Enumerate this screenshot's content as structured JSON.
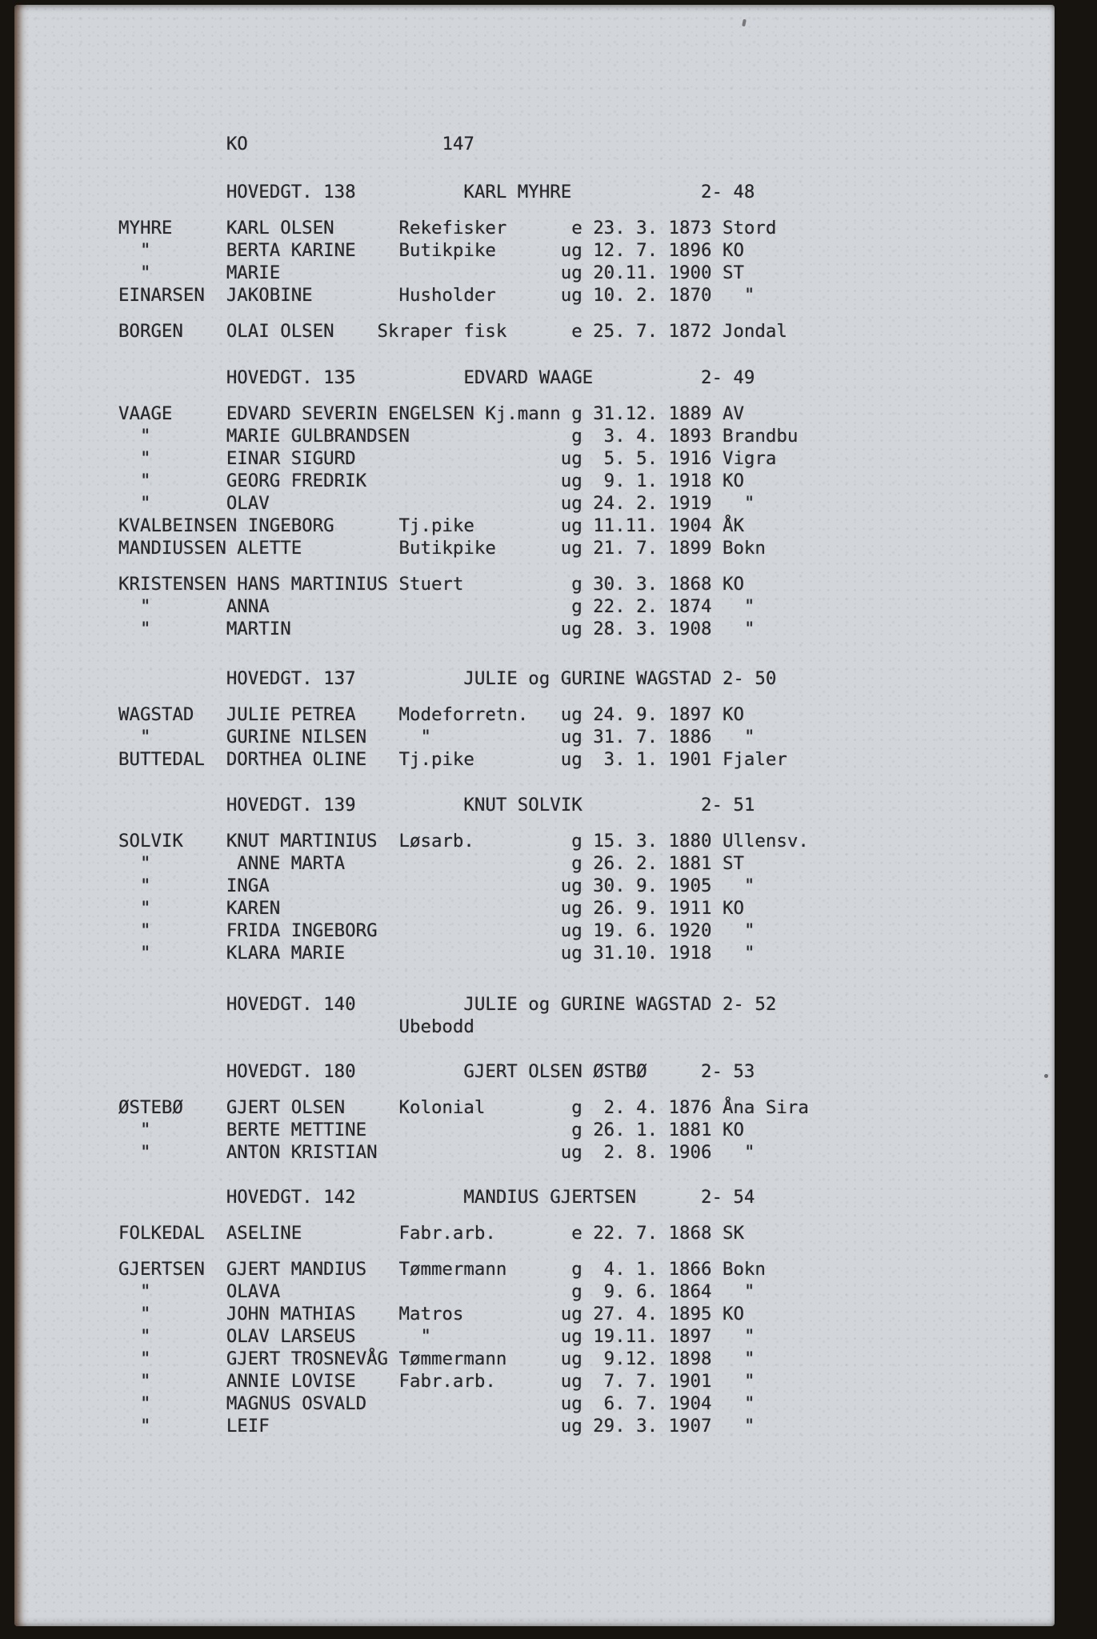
{
  "page": {
    "district_code": "KO",
    "page_number": "147"
  },
  "colors": {
    "paper": "#d2d5d9",
    "ink": "#26262b",
    "surround": "#17130f"
  },
  "ditto_mark": "\"",
  "sections": [
    {
      "address": "HOVEDGT. 138",
      "title": "KARL MYHRE",
      "number": "2- 48",
      "rows": [
        {
          "surname": "MYHRE",
          "given": "KARL OLSEN",
          "occupation": "Rekefisker",
          "status": "e",
          "date": "23. 3. 1873",
          "place": "Stord"
        },
        {
          "surname": "\"",
          "given": "BERTA KARINE",
          "occupation": "Butikpike",
          "status": "ug",
          "date": "12. 7. 1896",
          "place": "KO"
        },
        {
          "surname": "\"",
          "given": "MARIE",
          "occupation": "",
          "status": "ug",
          "date": "20.11. 1900",
          "place": "ST"
        },
        {
          "surname": "EINARSEN",
          "given": "JAKOBINE",
          "occupation": "Husholder",
          "status": "ug",
          "date": "10. 2. 1870",
          "place": "\""
        },
        {
          "surname": "BORGEN",
          "given": "OLAI OLSEN",
          "occupation": "Skraper fisk",
          "occ_col": 24,
          "gap_before": true,
          "status": "e",
          "date": "25. 7. 1872",
          "place": "Jondal"
        }
      ]
    },
    {
      "address": "HOVEDGT. 135",
      "title": "EDVARD WAAGE",
      "number": "2- 49",
      "rows": [
        {
          "surname": "VAAGE",
          "given": "EDVARD SEVERIN ENGELSEN",
          "occupation": "Kj.mann",
          "status": "g",
          "date": "31.12. 1889",
          "place": "AV"
        },
        {
          "surname": "\"",
          "given": "MARIE GULBRANDSEN",
          "occupation": "",
          "status": "g",
          "date": " 3. 4. 1893",
          "place": "Brandbu"
        },
        {
          "surname": "\"",
          "given": "EINAR SIGURD",
          "occupation": "",
          "status": "ug",
          "date": " 5. 5. 1916",
          "place": "Vigra"
        },
        {
          "surname": "\"",
          "given": "GEORG FREDRIK",
          "occupation": "",
          "status": "ug",
          "date": " 9. 1. 1918",
          "place": "KO"
        },
        {
          "surname": "\"",
          "given": "OLAV",
          "occupation": "",
          "status": "ug",
          "date": "24. 2. 1919",
          "place": "\""
        },
        {
          "surname": "KVALBEINSEN",
          "given": "INGEBORG",
          "occupation": "Tj.pike",
          "status": "ug",
          "date": "11.11. 1904",
          "place": "ÅK"
        },
        {
          "surname": "MANDIUSSEN",
          "given": "ALETTE",
          "occupation": "Butikpike",
          "status": "ug",
          "date": "21. 7. 1899",
          "place": "Bokn"
        },
        {
          "surname": "KRISTENSEN",
          "given": "HANS MARTINIUS",
          "occupation": "Stuert",
          "gap_before": true,
          "status": "g",
          "date": "30. 3. 1868",
          "place": "KO"
        },
        {
          "surname": "\"",
          "given": "ANNA",
          "occupation": "",
          "status": "g",
          "date": "22. 2. 1874",
          "place": "\""
        },
        {
          "surname": "\"",
          "given": "MARTIN",
          "occupation": "",
          "status": "ug",
          "date": "28. 3. 1908",
          "place": "\""
        }
      ]
    },
    {
      "address": "HOVEDGT. 137",
      "title": "JULIE og GURINE WAGSTAD",
      "number": "2- 50",
      "rows": [
        {
          "surname": "WAGSTAD",
          "given": "JULIE PETREA",
          "occupation": "Modeforretn.",
          "status": "ug",
          "date": "24. 9. 1897",
          "place": "KO"
        },
        {
          "surname": "\"",
          "given": "GURINE NILSEN",
          "occupation": "\"",
          "occ_col": 28,
          "status": "ug",
          "date": "31. 7. 1886",
          "place": "\""
        },
        {
          "surname": "BUTTEDAL",
          "given": "DORTHEA OLINE",
          "occupation": "Tj.pike",
          "status": "ug",
          "date": " 3. 1. 1901",
          "place": "Fjaler"
        }
      ]
    },
    {
      "address": "HOVEDGT. 139",
      "title": "KNUT SOLVIK",
      "number": "2- 51",
      "rows": [
        {
          "surname": "SOLVIK",
          "given": "KNUT MARTINIUS",
          "occupation": "Løsarb.",
          "status": "g",
          "date": "15. 3. 1880",
          "place": "Ullensv."
        },
        {
          "surname": "\"",
          "given": " ANNE MARTA",
          "occupation": "",
          "status": "g",
          "date": "26. 2. 1881",
          "place": "ST"
        },
        {
          "surname": "\"",
          "given": "INGA",
          "occupation": "",
          "status": "ug",
          "date": "30. 9. 1905",
          "place": "\""
        },
        {
          "surname": "\"",
          "given": "KAREN",
          "occupation": "",
          "status": "ug",
          "date": "26. 9. 1911",
          "place": "KO"
        },
        {
          "surname": "\"",
          "given": "FRIDA INGEBORG",
          "occupation": "",
          "status": "ug",
          "date": "19. 6. 1920",
          "place": "\""
        },
        {
          "surname": "\"",
          "given": "KLARA MARIE",
          "occupation": "",
          "status": "ug",
          "date": "31.10. 1918",
          "place": "\""
        }
      ]
    },
    {
      "address": "HOVEDGT. 140",
      "title": "JULIE og GURINE WAGSTAD",
      "number": "2- 52",
      "note": "Ubebodd",
      "rows": []
    },
    {
      "address": "HOVEDGT. 180",
      "title": "GJERT OLSEN ØSTBØ",
      "number": "2- 53",
      "rows": [
        {
          "surname": "ØSTEBØ",
          "given": "GJERT OLSEN",
          "occupation": "Kolonial",
          "status": "g",
          "date": " 2. 4. 1876",
          "place": "Åna Sira"
        },
        {
          "surname": "\"",
          "given": "BERTE METTINE",
          "occupation": "",
          "status": "g",
          "date": "26. 1. 1881",
          "place": "KO"
        },
        {
          "surname": "\"",
          "given": "ANTON KRISTIAN",
          "occupation": "",
          "status": "ug",
          "date": " 2. 8. 1906",
          "place": "\""
        }
      ]
    },
    {
      "address": "HOVEDGT. 142",
      "title": "MANDIUS GJERTSEN",
      "number": "2- 54",
      "rows": [
        {
          "surname": "FOLKEDAL",
          "given": "ASELINE",
          "occupation": "Fabr.arb.",
          "status": "e",
          "date": "22. 7. 1868",
          "place": "SK"
        },
        {
          "surname": "GJERTSEN",
          "given": "GJERT MANDIUS",
          "occupation": "Tømmermann",
          "gap_before": true,
          "status": "g",
          "date": " 4. 1. 1866",
          "place": "Bokn"
        },
        {
          "surname": "\"",
          "given": "OLAVA",
          "occupation": "",
          "status": "g",
          "date": " 9. 6. 1864",
          "place": "\""
        },
        {
          "surname": "\"",
          "given": "JOHN MATHIAS",
          "occupation": "Matros",
          "status": "ug",
          "date": "27. 4. 1895",
          "place": "KO"
        },
        {
          "surname": "\"",
          "given": "OLAV LARSEUS",
          "occupation": "\"",
          "occ_col": 28,
          "status": "ug",
          "date": "19.11. 1897",
          "place": "\""
        },
        {
          "surname": "\"",
          "given": "GJERT TROSNEVÅG",
          "occupation": "Tømmermann",
          "status": "ug",
          "date": " 9.12. 1898",
          "place": "\""
        },
        {
          "surname": "\"",
          "given": "ANNIE LOVISE",
          "occupation": "Fabr.arb.",
          "status": "ug",
          "date": " 7. 7. 1901",
          "place": "\""
        },
        {
          "surname": "\"",
          "given": "MAGNUS OSVALD",
          "occupation": "",
          "status": "ug",
          "date": " 6. 7. 1904",
          "place": "\""
        },
        {
          "surname": "\"",
          "given": "LEIF",
          "occupation": "",
          "status": "ug",
          "date": "29. 3. 1907",
          "place": "\""
        }
      ]
    }
  ]
}
